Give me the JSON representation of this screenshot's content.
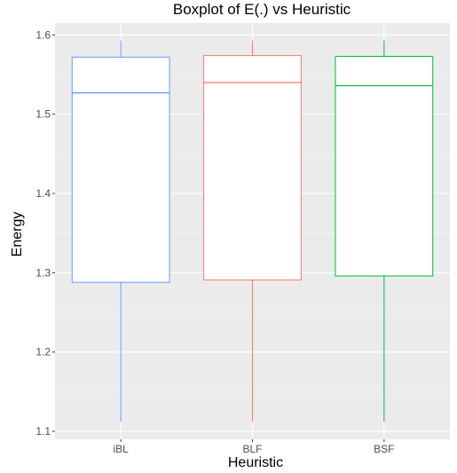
{
  "chart_data": {
    "type": "boxplot",
    "title": "Boxplot of E(.) vs Heuristic",
    "xlabel": "Heuristic",
    "ylabel": "Energy",
    "ylim": [
      1.09,
      1.615
    ],
    "yticks": [
      1.1,
      1.2,
      1.3,
      1.4,
      1.5,
      1.6
    ],
    "ytick_labels": [
      "1.1",
      "1.2",
      "1.3",
      "1.4",
      "1.5",
      "1.6"
    ],
    "grid": true,
    "legend": "none",
    "categories": [
      "iBL",
      "BLF",
      "BSF"
    ],
    "boxes": [
      {
        "label": "iBL",
        "color": "#619CFF",
        "min": 1.112,
        "q1": 1.288,
        "median": 1.527,
        "q3": 1.572,
        "max": 1.593
      },
      {
        "label": "BLF",
        "color": "#F8766D",
        "min": 1.112,
        "q1": 1.291,
        "median": 1.54,
        "q3": 1.574,
        "max": 1.593
      },
      {
        "label": "BSF",
        "color": "#00BA38",
        "min": 1.112,
        "q1": 1.296,
        "median": 1.536,
        "q3": 1.573,
        "max": 1.593
      }
    ]
  }
}
